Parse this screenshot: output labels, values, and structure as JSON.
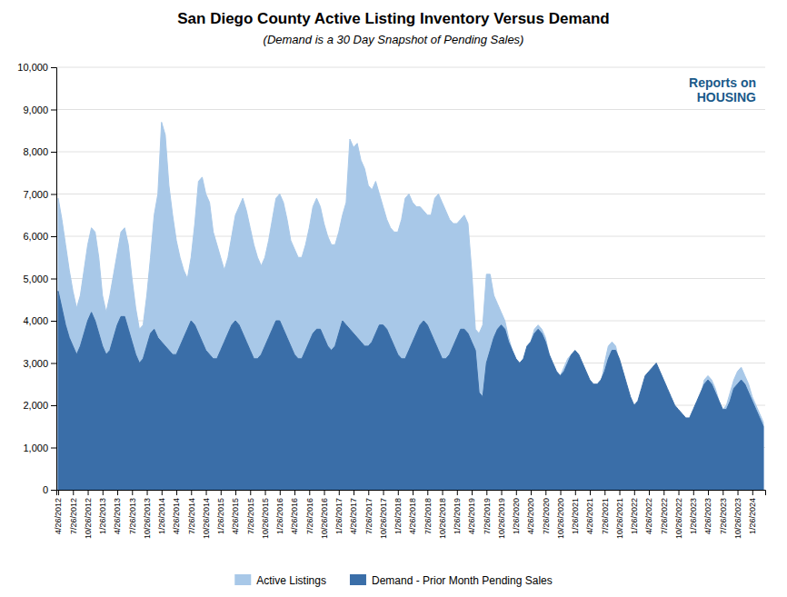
{
  "chart_data": {
    "type": "area",
    "title": "San Diego County Active Listing Inventory Versus Demand",
    "subtitle": "(Demand is a 30 Day Snapshot of Pending Sales)",
    "annotation": "Reports on\nHOUSING",
    "legend": "bottom",
    "grid": true,
    "ylim": [
      0,
      10000
    ],
    "yticks": [
      0,
      {
        "value": 1000,
        "label": "1,000"
      },
      {
        "value": 2000,
        "label": "2,000"
      },
      {
        "value": 3000,
        "label": "3,000"
      },
      {
        "value": 4000,
        "label": "4,000"
      },
      {
        "value": 5000,
        "label": "5,000"
      },
      {
        "value": 6000,
        "label": "6,000"
      },
      {
        "value": 7000,
        "label": "7,000"
      },
      {
        "value": 8000,
        "label": "8,000"
      },
      {
        "value": 9000,
        "label": "9,000"
      },
      {
        "value": 10000,
        "label": "10,000"
      }
    ],
    "categories": [
      "4/26/2012",
      null,
      null,
      null,
      "7/26/2012",
      null,
      null,
      null,
      "10/26/2012",
      null,
      null,
      null,
      "1/26/2013",
      null,
      null,
      null,
      "4/26/2013",
      null,
      null,
      null,
      "7/26/2013",
      null,
      null,
      null,
      "10/26/2013",
      null,
      null,
      null,
      "1/26/2014",
      null,
      null,
      null,
      "4/26/2014",
      null,
      null,
      null,
      "7/26/2014",
      null,
      null,
      null,
      "10/26/2014",
      null,
      null,
      null,
      "1/26/2015",
      null,
      null,
      null,
      "4/26/2015",
      null,
      null,
      null,
      "7/26/2015",
      null,
      null,
      null,
      "10/26/2015",
      null,
      null,
      null,
      "1/26/2016",
      null,
      null,
      null,
      "4/26/2016",
      null,
      null,
      null,
      "7/26/2016",
      null,
      null,
      null,
      "10/26/2016",
      null,
      null,
      null,
      "1/26/2017",
      null,
      null,
      null,
      "4/26/2017",
      null,
      null,
      null,
      "7/26/2017",
      null,
      null,
      null,
      "10/26/2017",
      null,
      null,
      null,
      "1/26/2018",
      null,
      null,
      null,
      "4/26/2018",
      null,
      null,
      null,
      "7/26/2018",
      null,
      null,
      null,
      "10/26/2018",
      null,
      null,
      null,
      "1/26/2019",
      null,
      null,
      null,
      "4/26/2019",
      null,
      null,
      null,
      "7/26/2019",
      null,
      null,
      null,
      "10/26/2019",
      null,
      null,
      null,
      "1/26/2020",
      null,
      null,
      null,
      "4/26/2020",
      null,
      null,
      null,
      "7/26/2020",
      null,
      null,
      null,
      "10/26/2020",
      null,
      null,
      null,
      "1/26/2021",
      null,
      null,
      null,
      "4/26/2021",
      null,
      null,
      null,
      "7/26/2021",
      null,
      null,
      null,
      "10/26/2021",
      null,
      null,
      null,
      "1/26/2022",
      null,
      null,
      null,
      "4/26/2022",
      null,
      null,
      null,
      "7/26/2022",
      null,
      null,
      null,
      "10/26/2022",
      null,
      null,
      null,
      "1/26/2023",
      null,
      null,
      null,
      "4/26/2023",
      null,
      null,
      null,
      "7/26/2023",
      null,
      null,
      null,
      "10/26/2023",
      null,
      null,
      null,
      "1/26/2024",
      null,
      null,
      null
    ],
    "series": [
      {
        "name": "Active Listings",
        "color": "#a8c8e8",
        "values": [
          6900,
          6400,
          5800,
          5200,
          4700,
          4300,
          4600,
          5200,
          5800,
          6200,
          6100,
          5500,
          4600,
          4200,
          4600,
          5100,
          5600,
          6100,
          6200,
          5800,
          5000,
          4300,
          3800,
          3900,
          4600,
          5500,
          6500,
          7000,
          8700,
          8400,
          7200,
          6500,
          5900,
          5500,
          5200,
          5000,
          5500,
          6300,
          7300,
          7400,
          7000,
          6800,
          6100,
          5800,
          5500,
          5200,
          5500,
          6000,
          6500,
          6700,
          6900,
          6600,
          6200,
          5800,
          5500,
          5300,
          5500,
          5900,
          6400,
          6900,
          7000,
          6800,
          6400,
          5900,
          5700,
          5500,
          5500,
          5800,
          6200,
          6700,
          6900,
          6700,
          6300,
          6000,
          5800,
          5800,
          6100,
          6500,
          6800,
          8300,
          8100,
          8200,
          7800,
          7600,
          7200,
          7100,
          7300,
          7000,
          6700,
          6400,
          6200,
          6100,
          6100,
          6400,
          6900,
          7000,
          6800,
          6700,
          6700,
          6600,
          6500,
          6500,
          6900,
          7000,
          6800,
          6600,
          6400,
          6300,
          6300,
          6400,
          6500,
          6300,
          5200,
          3800,
          3700,
          3900,
          5100,
          5100,
          4600,
          4400,
          4200,
          4000,
          3600,
          3300,
          3100,
          2900,
          3000,
          3400,
          3500,
          3800,
          3900,
          3800,
          3600,
          3200,
          2900,
          2700,
          2700,
          2900,
          3100,
          3200,
          3200,
          3100,
          2900,
          2700,
          2500,
          2400,
          2300,
          2500,
          3000,
          3400,
          3500,
          3400,
          3000,
          2500,
          2200,
          1800,
          1500,
          1700,
          2000,
          2500,
          2700,
          2800,
          2900,
          2600,
          2300,
          2100,
          1900,
          1700,
          1500,
          1400,
          1300,
          1200,
          1400,
          1800,
          2200,
          2600,
          2700,
          2600,
          2400,
          2100,
          1900,
          2000,
          2300,
          2600,
          2800,
          2900,
          2700,
          2500,
          2200,
          2000,
          1800,
          1600
        ]
      },
      {
        "name": "Demand - Prior Month Pending Sales",
        "color": "#3a6ea8",
        "values": [
          4700,
          4300,
          3900,
          3600,
          3400,
          3200,
          3400,
          3700,
          4000,
          4200,
          4000,
          3700,
          3400,
          3200,
          3300,
          3600,
          3900,
          4100,
          4100,
          3800,
          3500,
          3200,
          3000,
          3100,
          3400,
          3700,
          3800,
          3600,
          3500,
          3400,
          3300,
          3200,
          3200,
          3400,
          3600,
          3800,
          4000,
          3900,
          3700,
          3500,
          3300,
          3200,
          3100,
          3100,
          3300,
          3500,
          3700,
          3900,
          4000,
          3900,
          3700,
          3500,
          3300,
          3100,
          3100,
          3200,
          3400,
          3600,
          3800,
          4000,
          4000,
          3800,
          3600,
          3400,
          3200,
          3100,
          3100,
          3300,
          3500,
          3700,
          3800,
          3800,
          3600,
          3400,
          3300,
          3400,
          3700,
          4000,
          3900,
          3800,
          3700,
          3600,
          3500,
          3400,
          3400,
          3500,
          3700,
          3900,
          3900,
          3800,
          3600,
          3400,
          3200,
          3100,
          3100,
          3300,
          3500,
          3700,
          3900,
          4000,
          3900,
          3700,
          3500,
          3300,
          3100,
          3100,
          3200,
          3400,
          3600,
          3800,
          3800,
          3700,
          3500,
          3300,
          2300,
          2200,
          3000,
          3300,
          3600,
          3800,
          3900,
          3800,
          3500,
          3300,
          3100,
          3000,
          3100,
          3400,
          3500,
          3700,
          3800,
          3700,
          3500,
          3200,
          3000,
          2800,
          2700,
          2800,
          3000,
          3200,
          3300,
          3200,
          3000,
          2800,
          2600,
          2500,
          2500,
          2600,
          2800,
          3100,
          3300,
          3300,
          3100,
          2800,
          2500,
          2200,
          2000,
          2100,
          2400,
          2700,
          2800,
          2900,
          3000,
          2800,
          2600,
          2400,
          2200,
          2000,
          1900,
          1800,
          1700,
          1700,
          1900,
          2100,
          2300,
          2500,
          2600,
          2500,
          2300,
          2100,
          1900,
          1900,
          2100,
          2400,
          2500,
          2600,
          2500,
          2300,
          2100,
          1900,
          1700,
          1500
        ]
      }
    ]
  }
}
